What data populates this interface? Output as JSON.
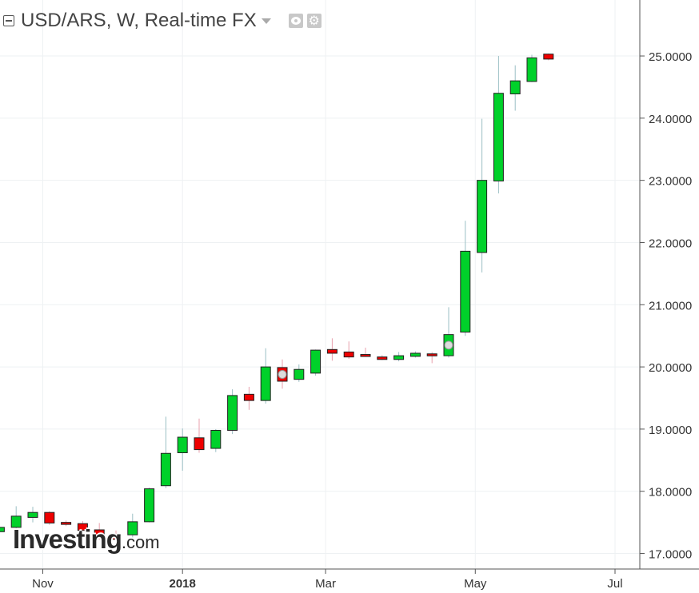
{
  "header": {
    "title": "USD/ARS, W, Real-time FX",
    "collapse_icon": "collapse-square-icon",
    "dropdown_icon": "caret-down-icon",
    "visibility_icon": "eye-icon",
    "settings_icon": "gear-icon"
  },
  "logo": {
    "brand": "Investing",
    "suffix": ".com"
  },
  "colors": {
    "up": "#00d12a",
    "down": "#ee0000",
    "up_wick": "#9bbfc4",
    "down_wick": "#e8a1ae",
    "grid": "#eef1f3",
    "axis": "#555555",
    "text": "#333333",
    "marker": "#dcdcdc"
  },
  "chart_data": {
    "type": "candlestick",
    "title": "USD/ARS, W, Real-time FX",
    "xlabel": "",
    "ylabel": "",
    "ylim": [
      16.75,
      25.9
    ],
    "y_ticks": [
      "17.0000",
      "18.0000",
      "19.0000",
      "20.0000",
      "21.0000",
      "22.0000",
      "23.0000",
      "24.0000",
      "25.0000"
    ],
    "x_ticks": [
      {
        "label": "Nov",
        "week": 2.6
      },
      {
        "label": "2018",
        "week": 11.0,
        "bold": true
      },
      {
        "label": "Mar",
        "week": 19.6
      },
      {
        "label": "May",
        "week": 28.6
      },
      {
        "label": "Jul",
        "week": 37.0
      }
    ],
    "grid": true,
    "candles": [
      {
        "open": 17.35,
        "high": 17.45,
        "low": 17.3,
        "close": 17.42
      },
      {
        "open": 17.42,
        "high": 17.76,
        "low": 17.4,
        "close": 17.6
      },
      {
        "open": 17.58,
        "high": 17.75,
        "low": 17.5,
        "close": 17.66
      },
      {
        "open": 17.66,
        "high": 17.68,
        "low": 17.46,
        "close": 17.49
      },
      {
        "open": 17.5,
        "high": 17.53,
        "low": 17.44,
        "close": 17.47
      },
      {
        "open": 17.48,
        "high": 17.52,
        "low": 17.34,
        "close": 17.37
      },
      {
        "open": 17.38,
        "high": 17.49,
        "low": 17.22,
        "close": 17.27
      },
      {
        "open": 17.26,
        "high": 17.37,
        "low": 17.19,
        "close": 17.24
      },
      {
        "open": 17.3,
        "high": 17.64,
        "low": 17.25,
        "close": 17.51
      },
      {
        "open": 17.51,
        "high": 18.06,
        "low": 17.5,
        "close": 18.04
      },
      {
        "open": 18.09,
        "high": 19.2,
        "low": 18.05,
        "close": 18.61
      },
      {
        "open": 18.62,
        "high": 19.01,
        "low": 18.33,
        "close": 18.87
      },
      {
        "open": 18.86,
        "high": 19.17,
        "low": 18.62,
        "close": 18.67
      },
      {
        "open": 18.69,
        "high": 19.0,
        "low": 18.63,
        "close": 18.98
      },
      {
        "open": 18.98,
        "high": 19.64,
        "low": 18.92,
        "close": 19.54
      },
      {
        "open": 19.56,
        "high": 19.68,
        "low": 19.31,
        "close": 19.46
      },
      {
        "open": 19.46,
        "high": 20.3,
        "low": 19.41,
        "close": 20.0
      },
      {
        "open": 19.99,
        "high": 20.12,
        "low": 19.65,
        "close": 19.77,
        "marker": true
      },
      {
        "open": 19.8,
        "high": 20.04,
        "low": 19.76,
        "close": 19.96
      },
      {
        "open": 19.9,
        "high": 20.28,
        "low": 19.86,
        "close": 20.27
      },
      {
        "open": 20.28,
        "high": 20.46,
        "low": 20.1,
        "close": 20.22
      },
      {
        "open": 20.24,
        "high": 20.41,
        "low": 20.13,
        "close": 20.16
      },
      {
        "open": 20.2,
        "high": 20.31,
        "low": 20.16,
        "close": 20.18
      },
      {
        "open": 20.16,
        "high": 20.19,
        "low": 20.11,
        "close": 20.12
      },
      {
        "open": 20.12,
        "high": 20.24,
        "low": 20.09,
        "close": 20.18
      },
      {
        "open": 20.17,
        "high": 20.25,
        "low": 20.15,
        "close": 20.22
      },
      {
        "open": 20.21,
        "high": 20.24,
        "low": 20.06,
        "close": 20.19
      },
      {
        "open": 20.18,
        "high": 20.96,
        "low": 20.15,
        "close": 20.52,
        "marker": true
      },
      {
        "open": 20.56,
        "high": 22.35,
        "low": 20.5,
        "close": 21.86
      },
      {
        "open": 21.84,
        "high": 23.99,
        "low": 21.52,
        "close": 23.0
      },
      {
        "open": 22.99,
        "high": 25.0,
        "low": 22.79,
        "close": 24.4
      },
      {
        "open": 24.39,
        "high": 24.85,
        "low": 24.12,
        "close": 24.6
      },
      {
        "open": 24.59,
        "high": 25.02,
        "low": 24.58,
        "close": 24.97
      },
      {
        "open": 25.03,
        "high": 25.04,
        "low": 24.93,
        "close": 24.95
      }
    ]
  }
}
